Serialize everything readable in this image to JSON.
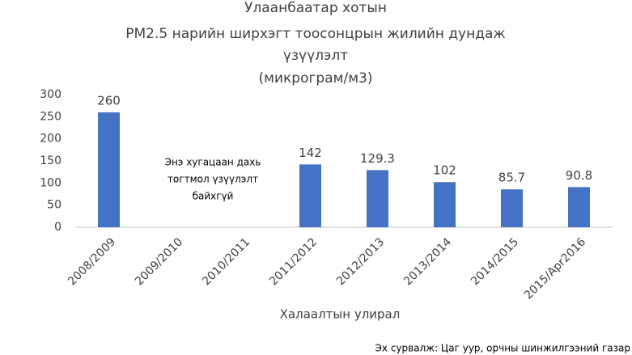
{
  "chart_data": {
    "type": "bar",
    "title": [
      "Улаанбаатар хотын",
      "PM2.5 нарийн ширхэгт тоосонцрын жилийн дундаж",
      "үзүүлэлт",
      "(микрограм/м3)"
    ],
    "categories": [
      "2008/2009",
      "2009/2010",
      "2010/2011",
      "2011/2012",
      "2012/2013",
      "2013/2014",
      "2014/2015",
      "2015/Apr2016"
    ],
    "values": [
      260,
      null,
      null,
      142,
      129.3,
      102,
      85.7,
      90.8
    ],
    "color": "#4472c4",
    "ylim": [
      0,
      300
    ],
    "yticks": [
      0,
      50,
      100,
      150,
      200,
      250,
      300
    ],
    "grid": false,
    "annotation": [
      "Энэ хугацаан дахь",
      "тогтмол үзүүлэлт",
      "байхгүй"
    ],
    "x_label": "Халаалтын улирал",
    "source": "Эх сурвалж: Цаг уур, орчны шинжилгээний газар"
  }
}
